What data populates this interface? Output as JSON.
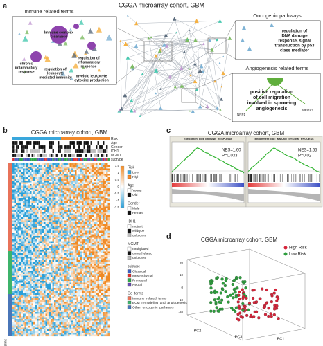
{
  "panel_a": {
    "label": "a",
    "title": "CGGA microarray cohort, GBM",
    "immune": {
      "title": "Immune related terms",
      "terms": [
        [
          "Immune complex",
          "clearance"
        ],
        [
          "chronic",
          "inflammatory",
          "response"
        ],
        [
          "regulation of",
          "leukocyte",
          "mediated immunity"
        ],
        [
          "regulation of",
          "inflammatory",
          "response"
        ],
        [
          "myeloid leukocyte",
          "cytokine production"
        ]
      ]
    },
    "oncogenic": {
      "title": "Oncogenic pathways",
      "terms": [
        [
          "regulation of",
          "DNA damage",
          "response, signal",
          "transduction by p53",
          "class mediator"
        ]
      ]
    },
    "angiogenesis": {
      "title": "Angiogenesis related terms",
      "terms": [
        [
          "positive regulation",
          "of cell migration",
          "involved in sprouting",
          "angiogenesis"
        ]
      ],
      "genes": [
        "NRP1",
        "SPRY2",
        "MEOX2"
      ]
    }
  },
  "panel_b": {
    "label": "b",
    "title": "CGGA microarray cohort, GBM",
    "tracks": [
      "Risk",
      "Age",
      "Gender",
      "IDH1",
      "MGMT",
      "subtype"
    ],
    "colorbar": {
      "ticks": [
        "1.5",
        "1",
        "0.5",
        "0",
        "-0.5",
        "-1",
        "-1.5"
      ],
      "colors": [
        "#f08a24",
        "#ffffff",
        "#2a9fd8"
      ]
    },
    "legend": [
      {
        "title": "Risk",
        "items": [
          {
            "name": "Low",
            "color": "#3aa7dc"
          },
          {
            "name": "High",
            "color": "#f28a2c"
          }
        ]
      },
      {
        "title": "Age",
        "items": [
          {
            "name": "Young",
            "color": "#ffffff"
          },
          {
            "name": "Old",
            "color": "#111111"
          }
        ]
      },
      {
        "title": "Gender",
        "items": [
          {
            "name": "Male",
            "color": "#ffffff"
          },
          {
            "name": "Female",
            "color": "#111111"
          }
        ]
      },
      {
        "title": "IDH1",
        "items": [
          {
            "name": "mutant",
            "color": "#ffffff"
          },
          {
            "name": "wildtype",
            "color": "#111111"
          },
          {
            "name": "unknown",
            "color": "#bdbdbd"
          }
        ]
      },
      {
        "title": "MGMT",
        "items": [
          {
            "name": "methylated",
            "color": "#ffffff"
          },
          {
            "name": "unmethylated",
            "color": "#111111"
          },
          {
            "name": "unknown",
            "color": "#bdbdbd"
          }
        ]
      },
      {
        "title": "subtype",
        "items": [
          {
            "name": "Classical",
            "color": "#3b5fc0"
          },
          {
            "name": "Mesenchymal",
            "color": "#e0312f"
          },
          {
            "name": "Proneural",
            "color": "#2ea84a"
          },
          {
            "name": "Neural",
            "color": "#6a4fb3"
          }
        ]
      },
      {
        "title": "Go_terms",
        "items": [
          {
            "name": "Immune_related_terms",
            "color": "#e8735a"
          },
          {
            "name": "ECM_remodeling_and_angiogenesis",
            "color": "#3db36b"
          },
          {
            "name": "Other_oncogenic_pathways",
            "color": "#4a76b8"
          }
        ]
      }
    ],
    "row_group_label": "Go_terms"
  },
  "panel_c": {
    "label": "c",
    "title": "CGGA microarray cohort, GBM",
    "plots": [
      {
        "title": "Enrichment plot: IMMUNE_RESPONSE",
        "nes": "NES=1.60",
        "p": "P=0.033"
      },
      {
        "title": "Enrichment plot: IMMUNE_SYSTEM_PROCESS",
        "nes": "NES=1.65",
        "p": "P=0.02"
      }
    ]
  },
  "panel_d": {
    "label": "d",
    "title": "CGGA microarray cohort, GBM",
    "legend": [
      {
        "name": "High Risk",
        "color": "#d6253a"
      },
      {
        "name": "Low Risk",
        "color": "#2e9e3e"
      }
    ],
    "axes": [
      "PC1",
      "PC2",
      "PC3"
    ],
    "ticks": [
      "20",
      "10",
      "0",
      "-10",
      "-20"
    ]
  }
}
